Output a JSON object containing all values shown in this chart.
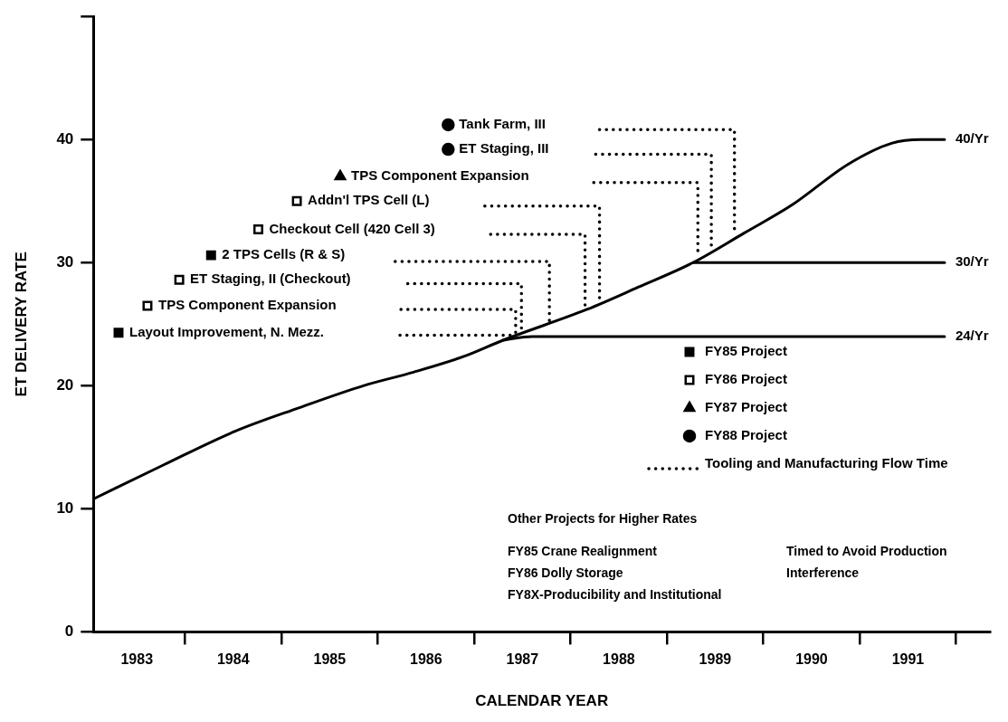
{
  "chart_data": {
    "type": "line",
    "xlabel": "CALENDAR YEAR",
    "ylabel": "ET DELIVERY RATE",
    "xlim": [
      1983.05,
      1992.35
    ],
    "xticks": [
      {
        "value": 1983.5,
        "label": "1983"
      },
      {
        "value": 1984,
        "label": null
      },
      {
        "value": 1984.5,
        "label": "1984"
      },
      {
        "value": 1985,
        "label": null
      },
      {
        "value": 1985.5,
        "label": "1985"
      },
      {
        "value": 1986,
        "label": null
      },
      {
        "value": 1986.5,
        "label": "1986"
      },
      {
        "value": 1987,
        "label": null
      },
      {
        "value": 1987.5,
        "label": "1987"
      },
      {
        "value": 1988,
        "label": null
      },
      {
        "value": 1988.5,
        "label": "1988"
      },
      {
        "value": 1989,
        "label": null
      },
      {
        "value": 1989.5,
        "label": "1989"
      },
      {
        "value": 1990,
        "label": null
      },
      {
        "value": 1990.5,
        "label": "1990"
      },
      {
        "value": 1991,
        "label": null
      },
      {
        "value": 1991.5,
        "label": "1991"
      },
      {
        "value": 1992,
        "label": null
      }
    ],
    "ylim": [
      0,
      50
    ],
    "yticks": [
      0,
      10,
      20,
      30,
      40,
      {
        "value": 50,
        "label": null
      }
    ],
    "legend": "right",
    "series": [
      {
        "color": "#000000",
        "line_style": "solid",
        "x": [
          1983.05,
          1983.76,
          1984.52,
          1985.18,
          1985.85,
          1986.37,
          1986.9,
          1987.3,
          1988.17,
          1988.7,
          1989.27,
          1989.8,
          1990.3,
          1990.88,
          1991.33,
          1991.64,
          1991.88
        ],
        "values": [
          10.8,
          13.5,
          16.3,
          18.2,
          20.0,
          21.1,
          22.4,
          23.7,
          26.2,
          28.0,
          30.0,
          32.4,
          34.7,
          38.0,
          39.7,
          40.0,
          40.0
        ]
      },
      {
        "color": "#000000",
        "line_style": "solid",
        "x": [
          1987.3,
          1987.6,
          1991.88
        ],
        "values": [
          23.7,
          24.0,
          24.0
        ]
      },
      {
        "color": "#000000",
        "line_style": "solid",
        "x": [
          1989.27,
          1991.88
        ],
        "values": [
          30.0,
          30.0
        ]
      },
      {
        "type": "scatter",
        "name": "FY85 Project",
        "color": "#000000",
        "marker": "square",
        "x": [
          1983.31,
          1984.27
        ],
        "values": [
          24.3,
          30.6
        ]
      },
      {
        "type": "scatter",
        "name": "FY86 Project",
        "color": "#ffffff",
        "marker": "square",
        "x": [
          1983.61,
          1983.94,
          1984.76,
          1985.16
        ],
        "values": [
          26.5,
          28.6,
          32.7,
          35.0
        ]
      },
      {
        "type": "scatter",
        "name": "FY87 Project",
        "color": "#000000",
        "marker": "triangle",
        "x": [
          1985.61
        ],
        "values": [
          37.0
        ]
      },
      {
        "type": "scatter",
        "name": "FY88 Project",
        "color": "#000000",
        "marker": "circle",
        "x": [
          1986.73,
          1986.73
        ],
        "values": [
          39.2,
          41.2
        ]
      },
      {
        "name": "Tooling and Manufacturing Flow Time",
        "color": "#000000",
        "line_style": "dotted",
        "x": [
          1988.3,
          1989.7,
          1989.7,
          null,
          1988.26,
          1989.46,
          1989.46,
          null,
          1988.24,
          1989.32,
          1989.32,
          null,
          1987.11,
          1988.3,
          1988.3,
          null,
          1987.17,
          1988.15,
          1988.15,
          null,
          1986.18,
          1987.78,
          1987.78,
          null,
          1986.31,
          1987.49,
          1987.49,
          null,
          1986.24,
          1987.43,
          1987.43,
          null,
          1986.23,
          1987.41
        ],
        "values": [
          40.8,
          40.8,
          32.3,
          null,
          38.8,
          38.8,
          30.9,
          null,
          36.5,
          36.5,
          30.5,
          null,
          34.6,
          34.6,
          26.8,
          null,
          32.3,
          32.3,
          26.2,
          null,
          30.1,
          30.1,
          24.8,
          null,
          28.3,
          28.3,
          24.3,
          null,
          26.2,
          26.2,
          24.1,
          null,
          24.1,
          24.1
        ]
      }
    ],
    "annotations": [
      {
        "text": "40/Yr",
        "x": 1991.88,
        "y": 40.0
      },
      {
        "text": "30/Yr",
        "x": 1991.88,
        "y": 30.0
      },
      {
        "text": "24/Yr",
        "x": 1991.88,
        "y": 24.0
      },
      {
        "text": "Tank Farm, III",
        "x": 1986.73,
        "y": 41.2
      },
      {
        "text": "ET Staging, III",
        "x": 1986.73,
        "y": 39.2
      },
      {
        "text": "TPS Component Expansion",
        "x": 1985.61,
        "y": 37.0
      },
      {
        "text": "Addn'l TPS Cell (L)",
        "x": 1985.16,
        "y": 35.0
      },
      {
        "text": "Checkout Cell (420 Cell 3)",
        "x": 1984.76,
        "y": 32.7
      },
      {
        "text": "2 TPS Cells (R & S)",
        "x": 1984.27,
        "y": 30.6
      },
      {
        "text": "ET Staging, II (Checkout)",
        "x": 1983.94,
        "y": 28.6
      },
      {
        "text": "TPS Component Expansion",
        "x": 1983.61,
        "y": 26.5
      },
      {
        "text": "Layout Improvement, N. Mezz.",
        "x": 1983.31,
        "y": 24.3
      },
      "Other Projects for Higher Rates",
      "FY85 Crane Realignment",
      "FY86 Dolly Storage",
      "FY8X-Producibility and Institutional",
      "Timed to Avoid Production Interference"
    ]
  }
}
